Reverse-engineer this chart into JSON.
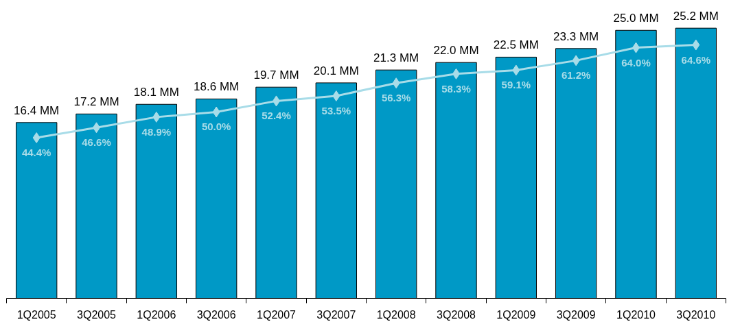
{
  "chart_data": {
    "type": "bar",
    "categories": [
      "1Q2005",
      "3Q2005",
      "1Q2006",
      "3Q2006",
      "1Q2007",
      "3Q2007",
      "1Q2008",
      "3Q2008",
      "1Q2009",
      "3Q2009",
      "1Q2010",
      "3Q2010"
    ],
    "series": [
      {
        "color": "#0099c6",
        "values": [
          16.4,
          17.2,
          18.1,
          18.6,
          19.7,
          20.1,
          21.3,
          22.0,
          22.5,
          23.3,
          25.0,
          25.2
        ],
        "value_labels": [
          "16.4 MM",
          "17.2 MM",
          "18.1 MM",
          "18.6 MM",
          "19.7 MM",
          "20.1 MM",
          "21.3 MM",
          "22.0 MM",
          "22.5 MM",
          "23.3 MM",
          "25.0 MM",
          "25.2 MM"
        ]
      },
      {
        "type": "line",
        "axis": "y2",
        "color": "#a8dce8",
        "values": [
          44.4,
          46.6,
          48.9,
          50.0,
          52.4,
          53.5,
          56.3,
          58.3,
          59.1,
          61.2,
          64.0,
          64.6
        ],
        "value_labels": [
          "44.4%",
          "46.6%",
          "48.9%",
          "50.0%",
          "52.4%",
          "53.5%",
          "56.3%",
          "58.3%",
          "59.1%",
          "61.2%",
          "64.0%",
          "64.6%"
        ]
      }
    ],
    "marker": "diamond",
    "line_style": "solid",
    "grid": false
  }
}
